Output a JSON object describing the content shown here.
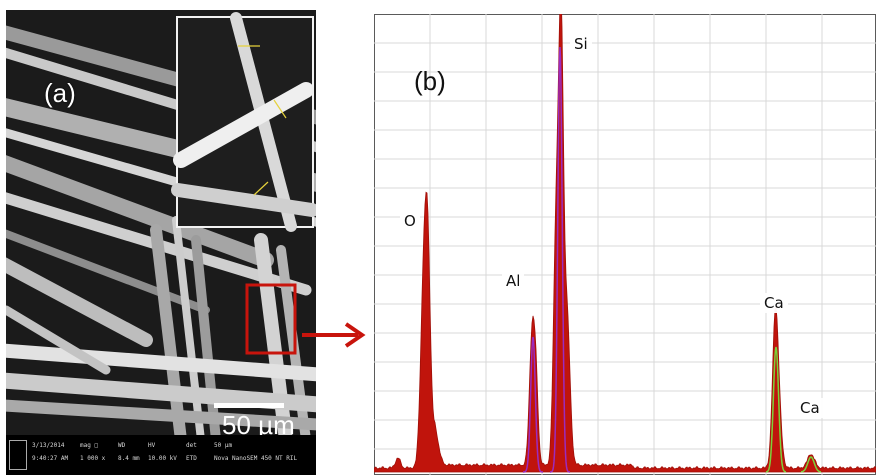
{
  "figure": {
    "panel_a": {
      "label": "(a)",
      "scale_bar": "50 µm",
      "info_bar": [
        {
          "top": "3/13/2014",
          "bottom": "9:40:27 AM"
        },
        {
          "top": "mag □",
          "bottom": "1 000 x"
        },
        {
          "top": "WD",
          "bottom": "8.4 mm"
        },
        {
          "top": "HV",
          "bottom": "10.00 kV"
        },
        {
          "top": "det",
          "bottom": "ETD"
        },
        {
          "top": "50 µm",
          "bottom": "Nova NanoSEM 450  NT  RIL"
        }
      ]
    },
    "panel_b": {
      "label": "(b)",
      "peak_labels": {
        "o": "O",
        "al": "Al",
        "si": "Si",
        "ca1": "Ca",
        "ca2": "Ca"
      }
    }
  },
  "colors": {
    "spectrum_fill": "#c0140c",
    "peak_overlay": "#9b2bbf",
    "ca_overlay": "#7bd23a",
    "arrow": "#c8140c",
    "highlight_box": "#c8140c",
    "grid": "#d9d9d9"
  },
  "icons": {
    "arrow": "right-arrow-icon"
  }
}
